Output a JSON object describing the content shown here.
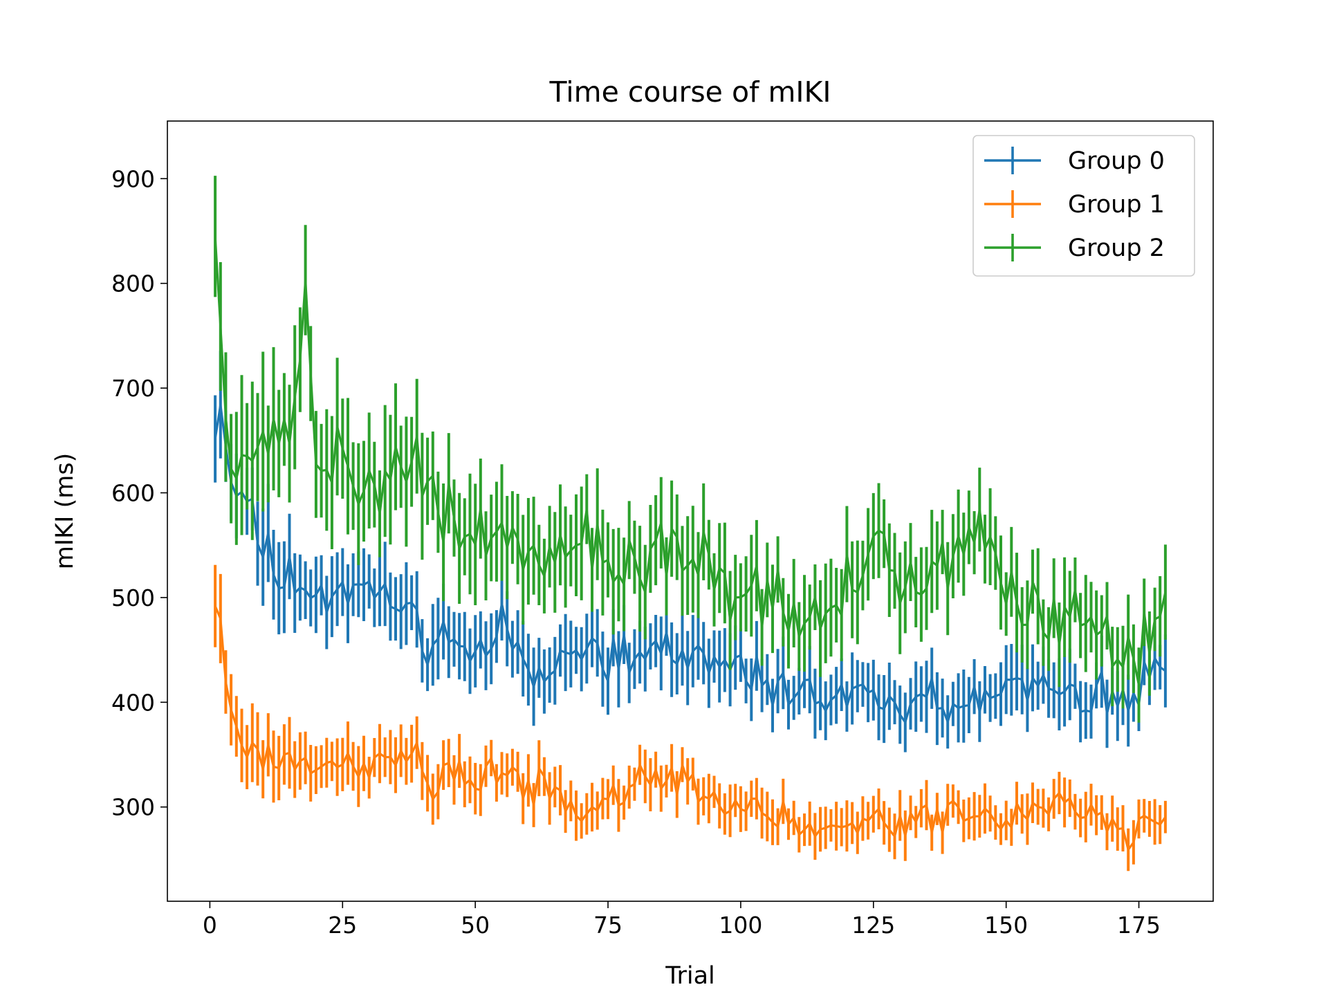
{
  "chart_data": {
    "type": "line",
    "title": "Time course of mIKI",
    "xlabel": "Trial",
    "ylabel": "mIKI (ms)",
    "xlim": [
      -8,
      189
    ],
    "ylim": [
      210,
      955
    ],
    "xticks": [
      0,
      25,
      50,
      75,
      100,
      125,
      150,
      175
    ],
    "yticks": [
      300,
      400,
      500,
      600,
      700,
      800,
      900
    ],
    "error_bars": true,
    "legend_position": "upper right",
    "n_trials": 180,
    "series": [
      {
        "name": "Group 0",
        "color": "#1f77b4",
        "anchors": [
          [
            1,
            665
          ],
          [
            2,
            690
          ],
          [
            3,
            650
          ],
          [
            4,
            610
          ],
          [
            6,
            600
          ],
          [
            8,
            580
          ],
          [
            10,
            555
          ],
          [
            13,
            530
          ],
          [
            16,
            515
          ],
          [
            18,
            505
          ],
          [
            20,
            500
          ],
          [
            25,
            520
          ],
          [
            30,
            500
          ],
          [
            35,
            495
          ],
          [
            38,
            490
          ],
          [
            40,
            460
          ],
          [
            45,
            470
          ],
          [
            50,
            440
          ],
          [
            53,
            455
          ],
          [
            55,
            475
          ],
          [
            60,
            440
          ],
          [
            70,
            450
          ],
          [
            75,
            440
          ],
          [
            80,
            440
          ],
          [
            85,
            450
          ],
          [
            90,
            445
          ],
          [
            100,
            430
          ],
          [
            110,
            410
          ],
          [
            120,
            400
          ],
          [
            130,
            395
          ],
          [
            140,
            405
          ],
          [
            150,
            420
          ],
          [
            160,
            410
          ],
          [
            170,
            400
          ],
          [
            180,
            425
          ]
        ],
        "err_anchors": [
          [
            1,
            45
          ],
          [
            5,
            40
          ],
          [
            20,
            35
          ],
          [
            60,
            30
          ],
          [
            100,
            28
          ],
          [
            180,
            28
          ]
        ],
        "noise": 20,
        "seed": 11
      },
      {
        "name": "Group 1",
        "color": "#ff7f0e",
        "anchors": [
          [
            1,
            500
          ],
          [
            2,
            475
          ],
          [
            3,
            420
          ],
          [
            4,
            390
          ],
          [
            6,
            370
          ],
          [
            8,
            355
          ],
          [
            10,
            350
          ],
          [
            15,
            350
          ],
          [
            20,
            345
          ],
          [
            25,
            340
          ],
          [
            30,
            335
          ],
          [
            35,
            350
          ],
          [
            38,
            360
          ],
          [
            40,
            340
          ],
          [
            42,
            310
          ],
          [
            45,
            330
          ],
          [
            50,
            330
          ],
          [
            55,
            330
          ],
          [
            60,
            320
          ],
          [
            70,
            305
          ],
          [
            75,
            310
          ],
          [
            80,
            320
          ],
          [
            88,
            330
          ],
          [
            90,
            325
          ],
          [
            95,
            305
          ],
          [
            100,
            300
          ],
          [
            110,
            285
          ],
          [
            120,
            280
          ],
          [
            130,
            290
          ],
          [
            140,
            295
          ],
          [
            150,
            290
          ],
          [
            160,
            295
          ],
          [
            170,
            295
          ],
          [
            173,
            275
          ],
          [
            180,
            290
          ]
        ],
        "err_anchors": [
          [
            1,
            38
          ],
          [
            5,
            33
          ],
          [
            20,
            25
          ],
          [
            60,
            22
          ],
          [
            100,
            20
          ],
          [
            180,
            20
          ]
        ],
        "noise": 15,
        "seed": 23
      },
      {
        "name": "Group 2",
        "color": "#2ca02c",
        "anchors": [
          [
            1,
            850
          ],
          [
            2,
            800
          ],
          [
            3,
            680
          ],
          [
            4,
            610
          ],
          [
            6,
            630
          ],
          [
            8,
            650
          ],
          [
            10,
            640
          ],
          [
            15,
            660
          ],
          [
            17,
            730
          ],
          [
            18,
            770
          ],
          [
            20,
            640
          ],
          [
            25,
            630
          ],
          [
            30,
            600
          ],
          [
            35,
            620
          ],
          [
            40,
            610
          ],
          [
            45,
            575
          ],
          [
            50,
            565
          ],
          [
            55,
            560
          ],
          [
            60,
            540
          ],
          [
            70,
            545
          ],
          [
            75,
            540
          ],
          [
            80,
            525
          ],
          [
            88,
            570
          ],
          [
            90,
            540
          ],
          [
            95,
            520
          ],
          [
            100,
            500
          ],
          [
            105,
            505
          ],
          [
            110,
            470
          ],
          [
            115,
            480
          ],
          [
            120,
            510
          ],
          [
            125,
            540
          ],
          [
            130,
            510
          ],
          [
            140,
            530
          ],
          [
            145,
            550
          ],
          [
            150,
            510
          ],
          [
            155,
            500
          ],
          [
            160,
            470
          ],
          [
            165,
            480
          ],
          [
            170,
            460
          ],
          [
            175,
            450
          ],
          [
            180,
            505
          ]
        ],
        "err_anchors": [
          [
            1,
            70
          ],
          [
            5,
            65
          ],
          [
            20,
            55
          ],
          [
            60,
            45
          ],
          [
            100,
            40
          ],
          [
            180,
            40
          ]
        ],
        "noise": 32,
        "seed": 37
      }
    ]
  }
}
